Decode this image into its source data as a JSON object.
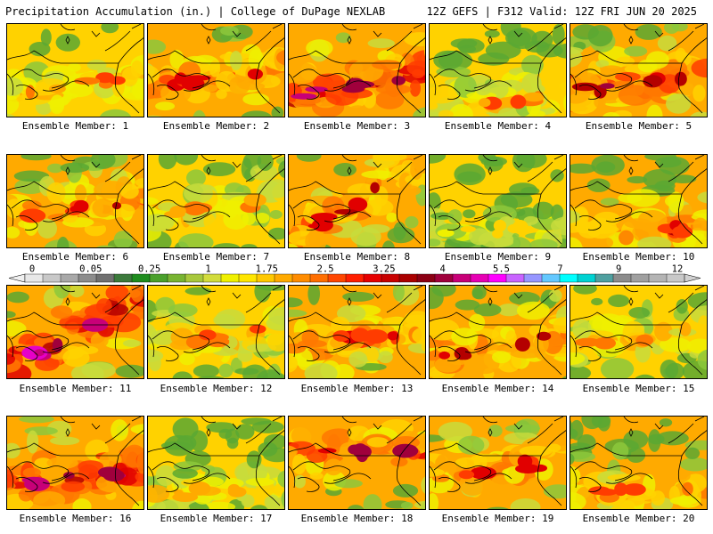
{
  "header": {
    "title": "Precipitation Accumulation (in.) | College of DuPage NEXLAB",
    "run_info": "12Z GEFS | F312 Valid: 12Z FRI JUN 20 2025"
  },
  "members": [
    {
      "label": "Ensemble Member: 1",
      "intensity": 0.45,
      "band": "low-left"
    },
    {
      "label": "Ensemble Member: 2",
      "intensity": 0.55,
      "band": "center"
    },
    {
      "label": "Ensemble Member: 3",
      "intensity": 0.75,
      "band": "low-left"
    },
    {
      "label": "Ensemble Member: 4",
      "intensity": 0.4,
      "band": "low"
    },
    {
      "label": "Ensemble Member: 5",
      "intensity": 0.65,
      "band": "center-right"
    },
    {
      "label": "Ensemble Member: 6",
      "intensity": 0.55,
      "band": "center"
    },
    {
      "label": "Ensemble Member: 7",
      "intensity": 0.4,
      "band": "center"
    },
    {
      "label": "Ensemble Member: 8",
      "intensity": 0.6,
      "band": "diagonal"
    },
    {
      "label": "Ensemble Member: 9",
      "intensity": 0.25,
      "band": "low"
    },
    {
      "label": "Ensemble Member: 10",
      "intensity": 0.55,
      "band": "low"
    },
    {
      "label": "Ensemble Member: 11",
      "intensity": 0.8,
      "band": "diagonal"
    },
    {
      "label": "Ensemble Member: 12",
      "intensity": 0.45,
      "band": "center"
    },
    {
      "label": "Ensemble Member: 13",
      "intensity": 0.55,
      "band": "center"
    },
    {
      "label": "Ensemble Member: 14",
      "intensity": 0.6,
      "band": "low-left"
    },
    {
      "label": "Ensemble Member: 15",
      "intensity": 0.4,
      "band": "center"
    },
    {
      "label": "Ensemble Member: 16",
      "intensity": 0.75,
      "band": "low-left"
    },
    {
      "label": "Ensemble Member: 17",
      "intensity": 0.35,
      "band": "low"
    },
    {
      "label": "Ensemble Member: 18",
      "intensity": 0.65,
      "band": "top"
    },
    {
      "label": "Ensemble Member: 19",
      "intensity": 0.55,
      "band": "center"
    },
    {
      "label": "Ensemble Member: 20",
      "intensity": 0.5,
      "band": "low"
    }
  ],
  "colorbar": {
    "tick_labels": [
      "0",
      "0.05",
      "0.25",
      "1",
      "1.75",
      "2.5",
      "3.25",
      "4",
      "5.5",
      "7",
      "9",
      "12"
    ],
    "colors": [
      "#e8e8e8",
      "#c8c8c8",
      "#a8a8a8",
      "#8c8c8c",
      "#707070",
      "#3c7a3c",
      "#1e8c1e",
      "#4aa02c",
      "#78b432",
      "#a8c83c",
      "#d2dc3c",
      "#f0f000",
      "#ffe600",
      "#ffc800",
      "#ffaa00",
      "#ff8c00",
      "#ff6e00",
      "#ff4600",
      "#ff1e00",
      "#e60000",
      "#c80000",
      "#aa0000",
      "#8c0014",
      "#a0003c",
      "#c80078",
      "#e600b4",
      "#ff00ff",
      "#c864ff",
      "#9696ff",
      "#64c8ff",
      "#00ffff",
      "#00d2d2",
      "#50a0a0",
      "#8c8c8c",
      "#a0a0a0",
      "#b4b4b4",
      "#c8c8c8"
    ]
  }
}
